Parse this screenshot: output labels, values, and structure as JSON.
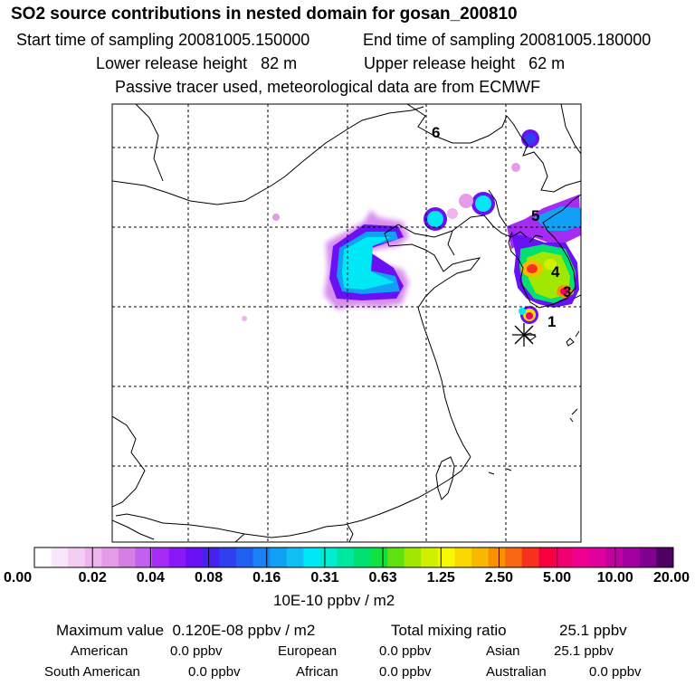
{
  "header": {
    "title": "SO2 source contributions in nested domain for gosan_200810",
    "start_label": "Start time of sampling 20081005.150000",
    "end_label": "End time of sampling 20081005.180000",
    "lower_label": "Lower release height   82 m",
    "upper_label": "Upper release height   62 m",
    "note": "Passive tracer used, meteorological data are from ECMWF"
  },
  "map": {
    "region_labels": [
      "1",
      "3",
      "4",
      "5",
      "6"
    ],
    "receptor": "gosan-star-marker"
  },
  "colorbar": {
    "ticks": [
      "0.00",
      "0.02",
      "0.04",
      "0.08",
      "0.16",
      "0.31",
      "0.63",
      "1.25",
      "2.50",
      "5.00",
      "10.00",
      "20.00"
    ],
    "unit": "10E-10 ppbv / m2",
    "colors": [
      "#ffffff",
      "#fae6fa",
      "#f3cdf3",
      "#edb4ed",
      "#e59be8",
      "#d47ee6",
      "#c260f0",
      "#a62cf5",
      "#8a17f5",
      "#6a10f5",
      "#4a20f0",
      "#3040ee",
      "#2060f0",
      "#1a80f5",
      "#10a0f5",
      "#10c0f5",
      "#00e8f5",
      "#00ecd0",
      "#00e8a0",
      "#00e070",
      "#10e040",
      "#60e010",
      "#a0e800",
      "#d0f000",
      "#f8f800",
      "#f8d800",
      "#f8b800",
      "#f89000",
      "#f86810",
      "#f83020",
      "#f80040",
      "#f00070",
      "#f00090",
      "#e000a0",
      "#c000a0",
      "#a000a0",
      "#800090",
      "#500060"
    ]
  },
  "stats": {
    "max_label": "Maximum value  0.120E-08 ppbv / m2",
    "total_label": "Total mixing ratio",
    "total_value": "25.1 ppbv",
    "regions": [
      {
        "name": "American",
        "value": "0.0 ppbv"
      },
      {
        "name": "European",
        "value": "0.0 ppbv"
      },
      {
        "name": "Asian",
        "value": "25.1 ppbv"
      },
      {
        "name": "South American",
        "value": "0.0 ppbv"
      },
      {
        "name": "African",
        "value": "0.0 ppbv"
      },
      {
        "name": "Australian",
        "value": "0.0 ppbv"
      }
    ]
  }
}
